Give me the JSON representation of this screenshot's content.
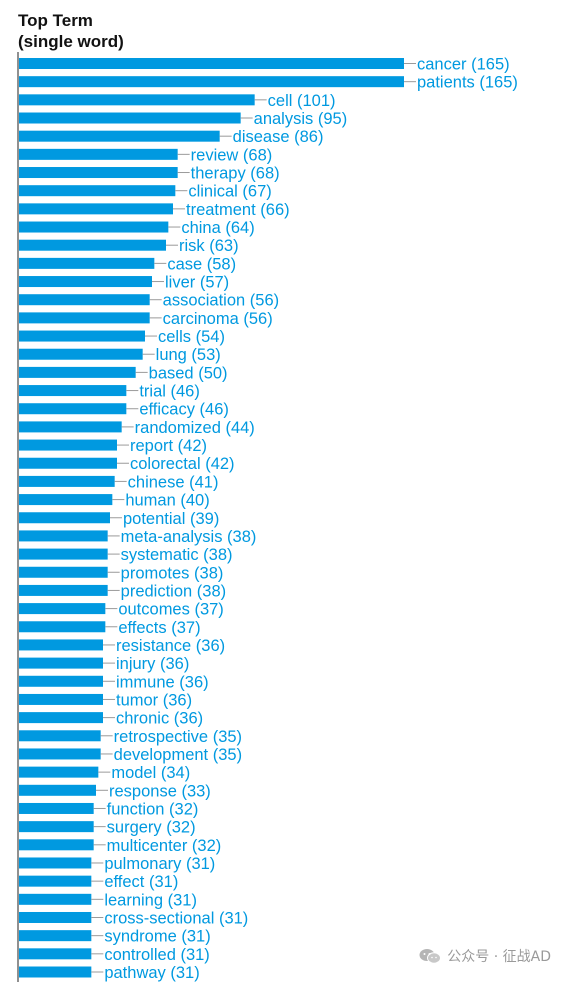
{
  "chart_data": {
    "type": "bar",
    "orientation": "horizontal",
    "title": "Top Term",
    "subtitle": "(single word)",
    "bar_color": "#0099e0",
    "label_color": "#0099e0",
    "axis_color": "#222222",
    "categories": [
      "cancer",
      "patients",
      "cell",
      "analysis",
      "disease",
      "review",
      "therapy",
      "clinical",
      "treatment",
      "china",
      "risk",
      "case",
      "liver",
      "association",
      "carcinoma",
      "cells",
      "lung",
      "based",
      "trial",
      "efficacy",
      "randomized",
      "report",
      "colorectal",
      "chinese",
      "human",
      "potential",
      "meta-analysis",
      "systematic",
      "promotes",
      "prediction",
      "outcomes",
      "effects",
      "resistance",
      "injury",
      "immune",
      "tumor",
      "chronic",
      "retrospective",
      "development",
      "model",
      "response",
      "function",
      "surgery",
      "multicenter",
      "pulmonary",
      "effect",
      "learning",
      "cross-sectional",
      "syndrome",
      "controlled",
      "pathway"
    ],
    "values": [
      165,
      165,
      101,
      95,
      86,
      68,
      68,
      67,
      66,
      64,
      63,
      58,
      57,
      56,
      56,
      54,
      53,
      50,
      46,
      46,
      44,
      42,
      42,
      41,
      40,
      39,
      38,
      38,
      38,
      38,
      37,
      37,
      36,
      36,
      36,
      36,
      36,
      35,
      35,
      34,
      33,
      32,
      32,
      32,
      31,
      31,
      31,
      31,
      31,
      31,
      31
    ],
    "labels": [
      "cancer (165)",
      "patients (165)",
      "cell (101)",
      "analysis (95)",
      "disease (86)",
      "review (68)",
      "therapy (68)",
      "clinical (67)",
      "treatment (66)",
      "china (64)",
      "risk (63)",
      "case (58)",
      "liver (57)",
      "association (56)",
      "carcinoma (56)",
      "cells (54)",
      "lung (53)",
      "based (50)",
      "trial (46)",
      "efficacy (46)",
      "randomized (44)",
      "report (42)",
      "colorectal (42)",
      "chinese (41)",
      "human (40)",
      "potential (39)",
      "meta-analysis (38)",
      "systematic (38)",
      "promotes (38)",
      "prediction (38)",
      "outcomes (37)",
      "effects (37)",
      "resistance (36)",
      "injury (36)",
      "immune (36)",
      "tumor (36)",
      "chronic (36)",
      "retrospective (35)",
      "development (35)",
      "model (34)",
      "response (33)",
      "function (32)",
      "surgery (32)",
      "multicenter (32)",
      "pulmonary (31)",
      "effect (31)",
      "learning (31)",
      "cross-sectional (31)",
      "syndrome (31)",
      "controlled (31)",
      "pathway (31)"
    ]
  },
  "watermark": {
    "text": "公众号 · 征战AD",
    "icon": "wechat-icon",
    "color": "#9a9a9a"
  }
}
